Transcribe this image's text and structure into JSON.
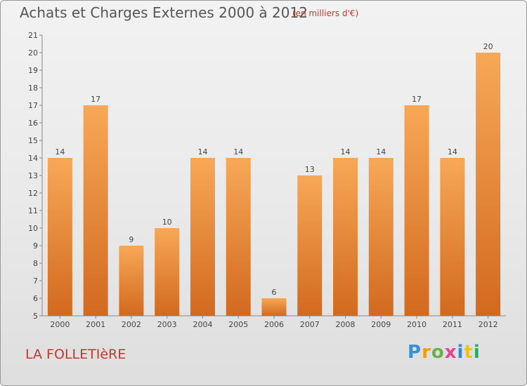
{
  "title": "Achats et Charges Externes 2000 à 2012",
  "subtitle": "(en milliers d'€)",
  "town": "LA FOLLETIèRE",
  "brand": {
    "p": "P",
    "r": "r",
    "o": "o",
    "x": "x",
    "i": "i",
    "t": "t",
    "i2": "i"
  },
  "colors": {
    "bar_light": "#f7a857",
    "bar_dark": "#d2691e",
    "axis": "#888888",
    "text": "#444444"
  },
  "chart_data": {
    "type": "bar",
    "categories": [
      "2000",
      "2001",
      "2002",
      "2003",
      "2004",
      "2005",
      "2006",
      "2007",
      "2008",
      "2009",
      "2010",
      "2011",
      "2012"
    ],
    "values": [
      14,
      17,
      9,
      10,
      14,
      14,
      6,
      13,
      14,
      14,
      17,
      14,
      20
    ],
    "ylim": [
      5,
      21
    ],
    "yticks": [
      5,
      6,
      7,
      8,
      9,
      10,
      11,
      12,
      13,
      14,
      15,
      16,
      17,
      18,
      19,
      20,
      21
    ],
    "grid": false
  }
}
